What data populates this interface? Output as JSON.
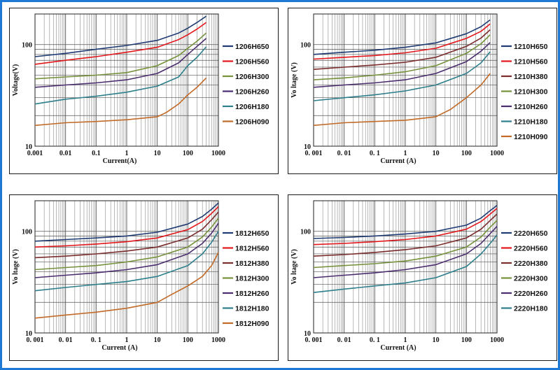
{
  "chart_data": [
    {
      "type": "line",
      "xscale": "log",
      "yscale": "log",
      "xlabel": "Current(A)",
      "ylabel": "Voltage(V)",
      "xlim": [
        0.001,
        1000
      ],
      "ylim": [
        10,
        200
      ],
      "xticks": [
        "0.001",
        "0.01",
        "0.1",
        "1",
        "10",
        "100",
        "1000"
      ],
      "yticks": [
        "10",
        "100"
      ],
      "grid": true,
      "legend": "right",
      "series": [
        {
          "name": "1206H650",
          "color": "#1f3b73",
          "x": [
            0.001,
            0.01,
            0.1,
            1,
            10,
            50,
            100,
            200,
            400
          ],
          "y": [
            76,
            82,
            90,
            98,
            110,
            130,
            145,
            165,
            190
          ]
        },
        {
          "name": "1206H560",
          "color": "#e3161b",
          "x": [
            0.001,
            0.01,
            0.1,
            1,
            10,
            50,
            100,
            200,
            400
          ],
          "y": [
            64,
            70,
            76,
            84,
            94,
            112,
            125,
            142,
            165
          ]
        },
        {
          "name": "1206H300",
          "color": "#76923c",
          "x": [
            0.001,
            0.01,
            0.1,
            1,
            10,
            50,
            100,
            200,
            400
          ],
          "y": [
            46,
            48,
            50,
            53,
            62,
            78,
            92,
            108,
            130
          ]
        },
        {
          "name": "1206H260",
          "color": "#4a2d6e",
          "x": [
            0.001,
            0.01,
            0.1,
            1,
            10,
            50,
            100,
            200,
            400
          ],
          "y": [
            38,
            40,
            42,
            45,
            52,
            66,
            80,
            96,
            115
          ]
        },
        {
          "name": "1206H180",
          "color": "#2e7f8c",
          "x": [
            0.001,
            0.01,
            0.1,
            1,
            10,
            50,
            100,
            200,
            400
          ],
          "y": [
            26,
            29,
            31,
            34,
            39,
            48,
            62,
            75,
            95
          ]
        },
        {
          "name": "1206H090",
          "color": "#c26a28",
          "x": [
            0.001,
            0.01,
            0.1,
            1,
            10,
            20,
            50,
            100,
            200,
            400
          ],
          "y": [
            16,
            17,
            17.5,
            18.2,
            19.5,
            21.5,
            26,
            32,
            38,
            47
          ]
        }
      ]
    },
    {
      "type": "line",
      "xscale": "log",
      "yscale": "log",
      "xlabel": "Current (A)",
      "ylabel": "Vo ltage (V)",
      "xlim": [
        0.001,
        1000
      ],
      "ylim": [
        10,
        200
      ],
      "xticks": [
        "0. 001",
        "0. 01",
        "0. 1",
        "1",
        "10",
        "100",
        "1000"
      ],
      "yticks": [
        "10",
        "100"
      ],
      "grid": true,
      "legend": "right",
      "series": [
        {
          "name": "1210H650",
          "color": "#1f3b73",
          "x": [
            0.001,
            0.01,
            0.1,
            1,
            10,
            100,
            300,
            600
          ],
          "y": [
            80,
            84,
            88,
            94,
            104,
            128,
            150,
            175
          ]
        },
        {
          "name": "1210H560",
          "color": "#e3161b",
          "x": [
            0.001,
            0.01,
            0.1,
            1,
            10,
            100,
            300,
            600
          ],
          "y": [
            72,
            75,
            78,
            83,
            92,
            115,
            135,
            160
          ]
        },
        {
          "name": "1210H380",
          "color": "#7b2c2c",
          "x": [
            0.001,
            0.01,
            0.1,
            1,
            10,
            100,
            300,
            600
          ],
          "y": [
            57,
            60,
            63,
            67,
            75,
            96,
            116,
            140
          ]
        },
        {
          "name": "1210H300",
          "color": "#76923c",
          "x": [
            0.001,
            0.01,
            0.1,
            1,
            10,
            100,
            300,
            600
          ],
          "y": [
            45,
            47,
            50,
            54,
            62,
            82,
            102,
            125
          ]
        },
        {
          "name": "1210H260",
          "color": "#4a2d6e",
          "x": [
            0.001,
            0.01,
            0.1,
            1,
            10,
            100,
            300,
            600
          ],
          "y": [
            38,
            40,
            42,
            45,
            52,
            68,
            86,
            105
          ]
        },
        {
          "name": "1210H180",
          "color": "#2e7f8c",
          "x": [
            0.001,
            0.01,
            0.1,
            1,
            10,
            100,
            300,
            600
          ],
          "y": [
            28,
            30,
            32,
            35,
            40,
            52,
            66,
            85
          ]
        },
        {
          "name": "1210H090",
          "color": "#c26a28",
          "x": [
            0.001,
            0.01,
            0.1,
            1,
            10,
            30,
            100,
            300,
            600
          ],
          "y": [
            16,
            17,
            17.5,
            18,
            19.5,
            23,
            30,
            40,
            52
          ]
        }
      ]
    },
    {
      "type": "line",
      "xscale": "log",
      "yscale": "log",
      "xlabel": "Current (A)",
      "ylabel": "Vo ltage (V)",
      "xlim": [
        0.001,
        1000
      ],
      "ylim": [
        10,
        200
      ],
      "xticks": [
        "0. 001",
        "0. 01",
        "0. 1",
        "1",
        "10",
        "100",
        "1000"
      ],
      "yticks": [
        "10",
        "100"
      ],
      "grid": true,
      "legend": "right",
      "series": [
        {
          "name": "1812H650",
          "color": "#1f3b73",
          "x": [
            0.001,
            0.01,
            0.1,
            1,
            10,
            100,
            300,
            600,
            1000
          ],
          "y": [
            80,
            83,
            86,
            90,
            98,
            118,
            140,
            165,
            190
          ]
        },
        {
          "name": "1812H560",
          "color": "#e3161b",
          "x": [
            0.001,
            0.01,
            0.1,
            1,
            10,
            100,
            300,
            600,
            1000
          ],
          "y": [
            70,
            72,
            75,
            79,
            86,
            104,
            125,
            150,
            175
          ]
        },
        {
          "name": "1812H380",
          "color": "#7b2c2c",
          "x": [
            0.001,
            0.01,
            0.1,
            1,
            10,
            100,
            300,
            600,
            1000
          ],
          "y": [
            55,
            57,
            60,
            64,
            70,
            86,
            105,
            130,
            155
          ]
        },
        {
          "name": "1812H300",
          "color": "#76923c",
          "x": [
            0.001,
            0.01,
            0.1,
            1,
            10,
            100,
            300,
            600,
            1000
          ],
          "y": [
            42,
            44,
            46,
            50,
            56,
            70,
            88,
            110,
            135
          ]
        },
        {
          "name": "1812H260",
          "color": "#4a2d6e",
          "x": [
            0.001,
            0.01,
            0.1,
            1,
            10,
            100,
            300,
            600,
            1000
          ],
          "y": [
            35,
            37,
            39,
            42,
            47,
            60,
            76,
            96,
            120
          ]
        },
        {
          "name": "1812H180",
          "color": "#2e7f8c",
          "x": [
            0.001,
            0.01,
            0.1,
            1,
            10,
            100,
            300,
            600,
            1000
          ],
          "y": [
            26,
            28,
            30,
            32,
            36,
            46,
            60,
            78,
            100
          ]
        },
        {
          "name": "1812H090",
          "color": "#c26a28",
          "x": [
            0.001,
            0.01,
            0.1,
            1,
            10,
            30,
            100,
            300,
            600,
            1000
          ],
          "y": [
            14,
            15,
            16,
            17.5,
            20,
            24,
            29,
            36,
            46,
            62
          ]
        }
      ]
    },
    {
      "type": "line",
      "xscale": "log",
      "yscale": "log",
      "xlabel": "Current (A)",
      "ylabel": "Vo ltage (V)",
      "xlim": [
        0.001,
        1000
      ],
      "ylim": [
        10,
        200
      ],
      "xticks": [
        "0. 001",
        "0. 01",
        "0. 1",
        "1",
        "10",
        "100",
        "1000"
      ],
      "yticks": [
        "10",
        "100"
      ],
      "grid": true,
      "legend": "right",
      "series": [
        {
          "name": "2220H650",
          "color": "#1f3b73",
          "x": [
            0.001,
            0.01,
            0.1,
            1,
            10,
            100,
            300,
            600,
            1000
          ],
          "y": [
            85,
            87,
            90,
            94,
            100,
            115,
            135,
            160,
            180
          ]
        },
        {
          "name": "2220H560",
          "color": "#e3161b",
          "x": [
            0.001,
            0.01,
            0.1,
            1,
            10,
            100,
            300,
            600,
            1000
          ],
          "y": [
            74,
            76,
            79,
            83,
            90,
            105,
            125,
            148,
            168
          ]
        },
        {
          "name": "2220H380",
          "color": "#7b2c2c",
          "x": [
            0.001,
            0.01,
            0.1,
            1,
            10,
            100,
            300,
            600,
            1000
          ],
          "y": [
            57,
            59,
            62,
            66,
            72,
            86,
            105,
            128,
            148
          ]
        },
        {
          "name": "2220H300",
          "color": "#76923c",
          "x": [
            0.001,
            0.01,
            0.1,
            1,
            10,
            100,
            300,
            600,
            1000
          ],
          "y": [
            44,
            46,
            48,
            51,
            57,
            70,
            88,
            110,
            128
          ]
        },
        {
          "name": "2220H260",
          "color": "#4a2d6e",
          "x": [
            0.001,
            0.01,
            0.1,
            1,
            10,
            100,
            300,
            600,
            1000
          ],
          "y": [
            35,
            37,
            39,
            42,
            47,
            60,
            76,
            95,
            112
          ]
        },
        {
          "name": "2220H180",
          "color": "#2e7f8c",
          "x": [
            0.001,
            0.01,
            0.1,
            1,
            10,
            100,
            300,
            600,
            1000
          ],
          "y": [
            25,
            27,
            29,
            31,
            35,
            45,
            60,
            76,
            92
          ]
        }
      ]
    }
  ]
}
